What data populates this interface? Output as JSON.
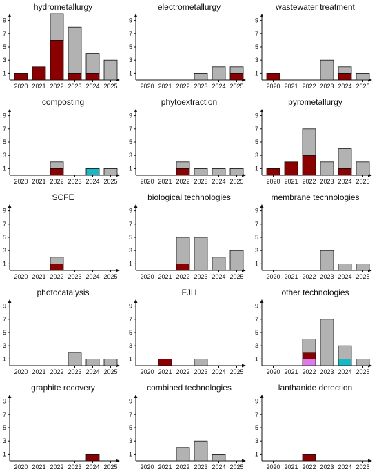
{
  "colors": {
    "gray": "#b2b2b2",
    "darkred": "#8b0000",
    "cyan": "#1bb8c4",
    "violet": "#d77fe6",
    "stroke": "#111111"
  },
  "chart_data": [
    {
      "type": "bar",
      "title": "hydrometallurgy",
      "categories": [
        "2020",
        "2021",
        "2022",
        "2023",
        "2024",
        "2025"
      ],
      "yticks": [
        "1",
        "3",
        "5",
        "7",
        "9"
      ],
      "ylim": [
        0,
        10
      ],
      "series": [
        {
          "color": "darkred",
          "values": [
            1,
            2,
            6,
            1,
            1,
            0
          ]
        },
        {
          "color": "gray",
          "values": [
            0,
            0,
            4,
            7,
            3,
            3
          ]
        }
      ]
    },
    {
      "type": "bar",
      "title": "electrometallurgy",
      "categories": [
        "2020",
        "2021",
        "2022",
        "2023",
        "2024",
        "2025"
      ],
      "yticks": [
        "1",
        "3",
        "5",
        "7",
        "9"
      ],
      "ylim": [
        0,
        10
      ],
      "series": [
        {
          "color": "darkred",
          "values": [
            0,
            0,
            0,
            0,
            0,
            1
          ]
        },
        {
          "color": "gray",
          "values": [
            0,
            0,
            0,
            1,
            2,
            1
          ]
        }
      ]
    },
    {
      "type": "bar",
      "title": "wastewater treatment",
      "categories": [
        "2020",
        "2021",
        "2022",
        "2023",
        "2024",
        "2025"
      ],
      "yticks": [
        "1",
        "3",
        "5",
        "7",
        "9"
      ],
      "ylim": [
        0,
        10
      ],
      "series": [
        {
          "color": "darkred",
          "values": [
            1,
            0,
            0,
            0,
            1,
            0
          ]
        },
        {
          "color": "gray",
          "values": [
            0,
            0,
            0,
            3,
            1,
            1
          ]
        }
      ]
    },
    {
      "type": "bar",
      "title": "composting",
      "categories": [
        "2020",
        "2021",
        "2022",
        "2023",
        "2024",
        "2025"
      ],
      "yticks": [
        "1",
        "3",
        "5",
        "7",
        "9"
      ],
      "ylim": [
        0,
        10
      ],
      "series": [
        {
          "color": "darkred",
          "values": [
            0,
            0,
            1,
            0,
            0,
            0
          ]
        },
        {
          "color": "cyan",
          "values": [
            0,
            0,
            0,
            0,
            1,
            0
          ]
        },
        {
          "color": "gray",
          "values": [
            0,
            0,
            1,
            0,
            0,
            1
          ]
        }
      ]
    },
    {
      "type": "bar",
      "title": "phytoextraction",
      "categories": [
        "2020",
        "2021",
        "2022",
        "2023",
        "2024",
        "2025"
      ],
      "yticks": [
        "1",
        "3",
        "5",
        "7",
        "9"
      ],
      "ylim": [
        0,
        10
      ],
      "series": [
        {
          "color": "darkred",
          "values": [
            0,
            0,
            1,
            0,
            0,
            0
          ]
        },
        {
          "color": "gray",
          "values": [
            0,
            0,
            1,
            1,
            1,
            1
          ]
        }
      ]
    },
    {
      "type": "bar",
      "title": "pyrometallurgy",
      "categories": [
        "2020",
        "2021",
        "2022",
        "2023",
        "2024",
        "2025"
      ],
      "yticks": [
        "1",
        "3",
        "5",
        "7",
        "9"
      ],
      "ylim": [
        0,
        10
      ],
      "series": [
        {
          "color": "darkred",
          "values": [
            1,
            2,
            3,
            0,
            1,
            0
          ]
        },
        {
          "color": "gray",
          "values": [
            0,
            0,
            4,
            2,
            3,
            2
          ]
        }
      ]
    },
    {
      "type": "bar",
      "title": "SCFE",
      "categories": [
        "2020",
        "2021",
        "2022",
        "2023",
        "2024",
        "2025"
      ],
      "yticks": [
        "1",
        "3",
        "5",
        "7",
        "9"
      ],
      "ylim": [
        0,
        10
      ],
      "series": [
        {
          "color": "darkred",
          "values": [
            0,
            0,
            1,
            0,
            0,
            0
          ]
        },
        {
          "color": "gray",
          "values": [
            0,
            0,
            1,
            0,
            0,
            0
          ]
        }
      ]
    },
    {
      "type": "bar",
      "title": "biological technologies",
      "categories": [
        "2020",
        "2021",
        "2022",
        "2023",
        "2024",
        "2025"
      ],
      "yticks": [
        "1",
        "3",
        "5",
        "7",
        "9"
      ],
      "ylim": [
        0,
        10
      ],
      "series": [
        {
          "color": "darkred",
          "values": [
            0,
            0,
            1,
            0,
            0,
            0
          ]
        },
        {
          "color": "gray",
          "values": [
            0,
            0,
            4,
            5,
            2,
            3
          ]
        }
      ]
    },
    {
      "type": "bar",
      "title": "membrane technologies",
      "categories": [
        "2020",
        "2021",
        "2022",
        "2023",
        "2024",
        "2025"
      ],
      "yticks": [
        "1",
        "3",
        "5",
        "7",
        "9"
      ],
      "ylim": [
        0,
        10
      ],
      "series": [
        {
          "color": "gray",
          "values": [
            0,
            0,
            0,
            3,
            1,
            1
          ]
        }
      ]
    },
    {
      "type": "bar",
      "title": "photocatalysis",
      "categories": [
        "2020",
        "2021",
        "2022",
        "2023",
        "2024",
        "2025"
      ],
      "yticks": [
        "1",
        "3",
        "5",
        "7",
        "9"
      ],
      "ylim": [
        0,
        10
      ],
      "series": [
        {
          "color": "gray",
          "values": [
            0,
            0,
            0,
            2,
            1,
            1
          ]
        }
      ]
    },
    {
      "type": "bar",
      "title": "FJH",
      "categories": [
        "2020",
        "2021",
        "2022",
        "2023",
        "2024",
        "2025"
      ],
      "yticks": [
        "1",
        "3",
        "5",
        "7",
        "9"
      ],
      "ylim": [
        0,
        10
      ],
      "series": [
        {
          "color": "darkred",
          "values": [
            0,
            1,
            0,
            0,
            0,
            0
          ]
        },
        {
          "color": "gray",
          "values": [
            0,
            0,
            0,
            1,
            0,
            0
          ]
        }
      ]
    },
    {
      "type": "bar",
      "title": "other technologies",
      "categories": [
        "2020",
        "2021",
        "2022",
        "2023",
        "2024",
        "2025"
      ],
      "yticks": [
        "1",
        "3",
        "5",
        "7",
        "9"
      ],
      "ylim": [
        0,
        10
      ],
      "series": [
        {
          "color": "violet",
          "values": [
            0,
            0,
            1,
            0,
            0,
            0
          ]
        },
        {
          "color": "cyan",
          "values": [
            0,
            0,
            0,
            0,
            1,
            0
          ]
        },
        {
          "color": "darkred",
          "values": [
            0,
            0,
            1,
            0,
            0,
            0
          ]
        },
        {
          "color": "gray",
          "values": [
            0,
            0,
            2,
            7,
            2,
            1
          ]
        }
      ]
    },
    {
      "type": "bar",
      "title": "graphite recovery",
      "categories": [
        "2020",
        "2021",
        "2022",
        "2023",
        "2024",
        "2025"
      ],
      "yticks": [
        "1",
        "3",
        "5",
        "7",
        "9"
      ],
      "ylim": [
        0,
        10
      ],
      "series": [
        {
          "color": "darkred",
          "values": [
            0,
            0,
            0,
            0,
            1,
            0
          ]
        }
      ]
    },
    {
      "type": "bar",
      "title": "combined technologies",
      "categories": [
        "2020",
        "2021",
        "2022",
        "2023",
        "2024",
        "2025"
      ],
      "yticks": [
        "1",
        "3",
        "5",
        "7",
        "9"
      ],
      "ylim": [
        0,
        10
      ],
      "series": [
        {
          "color": "gray",
          "values": [
            0,
            0,
            2,
            3,
            1,
            0
          ]
        }
      ]
    },
    {
      "type": "bar",
      "title": "lanthanide detection",
      "categories": [
        "2020",
        "2021",
        "2022",
        "2023",
        "2024",
        "2025"
      ],
      "yticks": [
        "1",
        "3",
        "5",
        "7",
        "9"
      ],
      "ylim": [
        0,
        10
      ],
      "series": [
        {
          "color": "darkred",
          "values": [
            0,
            0,
            1,
            0,
            0,
            0
          ]
        }
      ]
    }
  ]
}
